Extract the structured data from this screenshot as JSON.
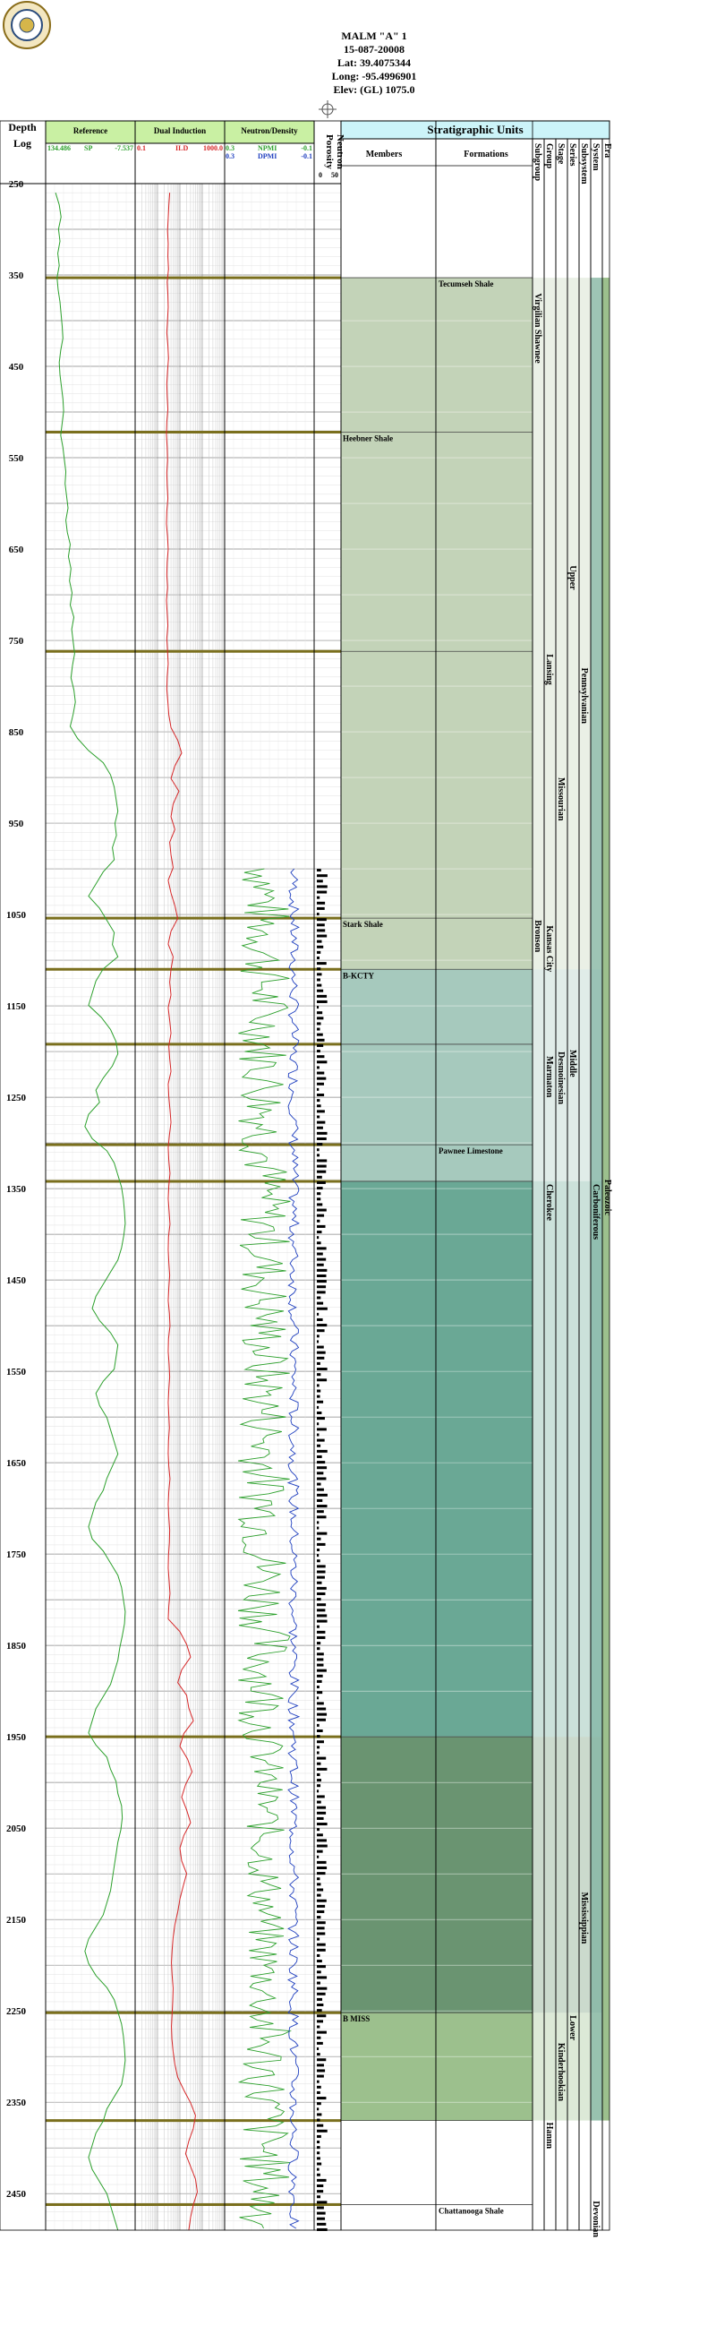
{
  "header": {
    "well_name": "MALM \"A\" 1",
    "api": "15-087-20008",
    "lat": "Lat: 39.4075344",
    "long": "Long: -95.4996901",
    "elev": "Elev: (GL) 1075.0"
  },
  "columns": {
    "depth_title": "Depth",
    "depth_sub": "Log",
    "reference": "Reference",
    "dual_induction": "Dual Induction",
    "neutron_density": "Neutron/Density",
    "porosity_title": "Porosity",
    "neutron_title": "Neutron",
    "strat_title": "Stratigraphic Units",
    "members": "Members",
    "formations": "Formations",
    "strat_cols": [
      "Subgroup",
      "Group",
      "Stage",
      "Series",
      "Subsystem",
      "System",
      "Era"
    ]
  },
  "track_scales": {
    "ref_min": "134.486",
    "ref_curve": "SP",
    "ref_max": "-7.537",
    "ild_min": "0.1",
    "ild_curve": "ILD",
    "ild_max": "1000.0",
    "npmi_min": "0.3",
    "npmi_curve": "NPMI",
    "npmi_max": "-0.1",
    "dpmi_min": "0.3",
    "dpmi_curve": "DPMI",
    "dpmi_max": "-0.1",
    "por_min": "0",
    "por_max": "50"
  },
  "chart_data": {
    "type": "line",
    "depth_range": [
      250,
      2490
    ],
    "depth_ticks": [
      250,
      350,
      450,
      550,
      650,
      750,
      850,
      950,
      1050,
      1150,
      1250,
      1350,
      1450,
      1550,
      1650,
      1750,
      1850,
      1950,
      2050,
      2150,
      2250,
      2350,
      2450
    ],
    "tops": [
      {
        "depth": 353,
        "name": "Tecumseh Shale",
        "column": "formations"
      },
      {
        "depth": 522,
        "name": "Heebner Shale",
        "column": "members"
      },
      {
        "depth": 762,
        "name": "",
        "column": "members"
      },
      {
        "depth": 1054,
        "name": "Stark Shale",
        "column": "members"
      },
      {
        "depth": 1110,
        "name": "B-KCTY",
        "column": "members"
      },
      {
        "depth": 1192,
        "name": "",
        "column": "members"
      },
      {
        "depth": 1302,
        "name": "Pawnee Limestone",
        "column": "formations"
      },
      {
        "depth": 1342,
        "name": "",
        "column": "members"
      },
      {
        "depth": 1950,
        "name": "",
        "column": "members"
      },
      {
        "depth": 2252,
        "name": "B MISS",
        "column": "members"
      },
      {
        "depth": 2370,
        "name": "",
        "column": "members"
      },
      {
        "depth": 2462,
        "name": "Chattanooga Shale",
        "column": "formations"
      }
    ],
    "strat_bands": [
      {
        "from": 353,
        "to": 1110,
        "color": "#c3d3b8"
      },
      {
        "from": 1110,
        "to": 1342,
        "color": "#a6c9bd"
      },
      {
        "from": 1342,
        "to": 1950,
        "color": "#6aa895"
      },
      {
        "from": 1950,
        "to": 2252,
        "color": "#6a9471"
      },
      {
        "from": 2252,
        "to": 2370,
        "color": "#9cc08d"
      }
    ],
    "strat_labels": [
      {
        "text": "Virgilian Shawnee",
        "column": "subgroup_group",
        "depth": 370
      },
      {
        "text": "Upper",
        "column": "series",
        "depth": 668
      },
      {
        "text": "Lansing",
        "column": "group",
        "depth": 765
      },
      {
        "text": "Pennsylvanian",
        "column": "subsystem",
        "depth": 780
      },
      {
        "text": "Missourian",
        "column": "stage",
        "depth": 900
      },
      {
        "text": "Kansas City",
        "column": "group",
        "depth": 1062
      },
      {
        "text": "Bronson",
        "column": "subgroup",
        "depth": 1056
      },
      {
        "text": "Middle",
        "column": "series",
        "depth": 1198
      },
      {
        "text": "Desmoinesian",
        "column": "stage",
        "depth": 1200
      },
      {
        "text": "Marmaton",
        "column": "group",
        "depth": 1205
      },
      {
        "text": "Cherokee",
        "column": "group",
        "depth": 1345
      },
      {
        "text": "Paleozoic",
        "column": "era",
        "depth": 1340
      },
      {
        "text": "Carboniferous",
        "column": "system",
        "depth": 1345
      },
      {
        "text": "Mississippian",
        "column": "subsystem",
        "depth": 2120
      },
      {
        "text": "Lower",
        "column": "series",
        "depth": 2255
      },
      {
        "text": "Kinderhookian",
        "column": "stage",
        "depth": 2285
      },
      {
        "text": "Hannn",
        "column": "group",
        "depth": 2372
      },
      {
        "text": "Devonian",
        "column": "system",
        "depth": 2458
      }
    ],
    "series": [
      {
        "name": "SP",
        "color": "#2ca02c",
        "start_depth": 260,
        "values": [
          -70,
          -60,
          -55,
          -62,
          -58,
          -64,
          -60,
          -66,
          -63,
          -58,
          -55,
          -52,
          -50,
          -56,
          -60,
          -58,
          -54,
          -50,
          -48,
          -52,
          -56,
          -50,
          -46,
          -42,
          -44,
          -40,
          -36,
          -42,
          -38,
          -30,
          -35,
          -28,
          -32,
          -25,
          -30,
          -20,
          -26,
          -22,
          -18,
          -24,
          -28,
          -20,
          -16,
          -22,
          -30,
          -10,
          20,
          60,
          80,
          90,
          95,
          100,
          92,
          96,
          85,
          90,
          60,
          40,
          20,
          50,
          70,
          90,
          85,
          100,
          60,
          40,
          30,
          20,
          55,
          80,
          95,
          100,
          85,
          60,
          40,
          50,
          20,
          10,
          30,
          70,
          90,
          100,
          110,
          115,
          118,
          120,
          116,
          110,
          100,
          80,
          60,
          40,
          30,
          50,
          80,
          100,
          95,
          90,
          60,
          40,
          50,
          70,
          80,
          90,
          100,
          85,
          70,
          60,
          40,
          30,
          20,
          30,
          60,
          80,
          100,
          110,
          115,
          120,
          118,
          112,
          105,
          100,
          90,
          80,
          60,
          40,
          30,
          20,
          40,
          70,
          80,
          95,
          100,
          110,
          112,
          108,
          100,
          95,
          90,
          85,
          80,
          70,
          60,
          40,
          20,
          10,
          20,
          40,
          70,
          90,
          100,
          110,
          115,
          118,
          120,
          116,
          110,
          90,
          70,
          60,
          40,
          30,
          20,
          30,
          50,
          70,
          80,
          90,
          100
        ]
      },
      {
        "name": "ILD",
        "color": "#d62728",
        "start_depth": 260,
        "values": [
          3.5,
          3.2,
          3.0,
          2.8,
          3.0,
          2.9,
          3.1,
          2.7,
          2.9,
          3.0,
          2.8,
          2.6,
          2.9,
          3.1,
          2.8,
          2.6,
          2.7,
          2.9,
          2.6,
          2.5,
          2.7,
          2.8,
          2.6,
          2.7,
          2.9,
          2.6,
          2.5,
          2.8,
          3.0,
          2.7,
          2.6,
          2.8,
          2.5,
          2.7,
          2.9,
          2.6,
          2.8,
          3.0,
          2.7,
          2.6,
          2.9,
          3.2,
          4,
          8,
          12,
          6,
          4,
          9,
          5,
          4,
          6,
          3.5,
          4,
          5,
          3,
          4,
          6,
          8,
          4,
          3,
          5,
          4,
          3.5,
          4,
          3,
          3.5,
          4,
          3.2,
          3.5,
          4,
          3,
          3.2,
          3.6,
          4,
          3.4,
          3,
          3.2,
          3.6,
          3.2,
          3,
          3.3,
          3.6,
          3.1,
          3,
          3.2,
          3.5,
          3.2,
          3,
          3.4,
          3.6,
          3.1,
          3,
          3.3,
          3.5,
          3.2,
          3,
          3.2,
          3.4,
          3.1,
          3,
          3.2,
          3.6,
          3.2,
          3,
          3.2,
          3.5,
          3.4,
          3.1,
          3,
          3.3,
          3.6,
          3.2,
          3,
          10,
          20,
          30,
          12,
          8,
          20,
          25,
          40,
          15,
          10,
          22,
          35,
          18,
          12,
          20,
          30,
          15,
          10,
          12,
          20,
          14,
          10,
          8,
          6,
          5,
          4.5,
          4.2,
          4.5,
          5,
          4.8,
          4.5,
          4.2,
          4.4,
          5,
          6,
          8,
          15,
          30,
          50,
          40,
          25,
          18,
          30,
          50,
          60,
          40,
          30,
          25
        ]
      }
    ],
    "xlim_sp": [
      134.486,
      -7.537
    ],
    "xlim_ild": [
      0.1,
      1000.0
    ],
    "xlim_neutron": [
      0.3,
      -0.1
    ],
    "grid": true
  }
}
